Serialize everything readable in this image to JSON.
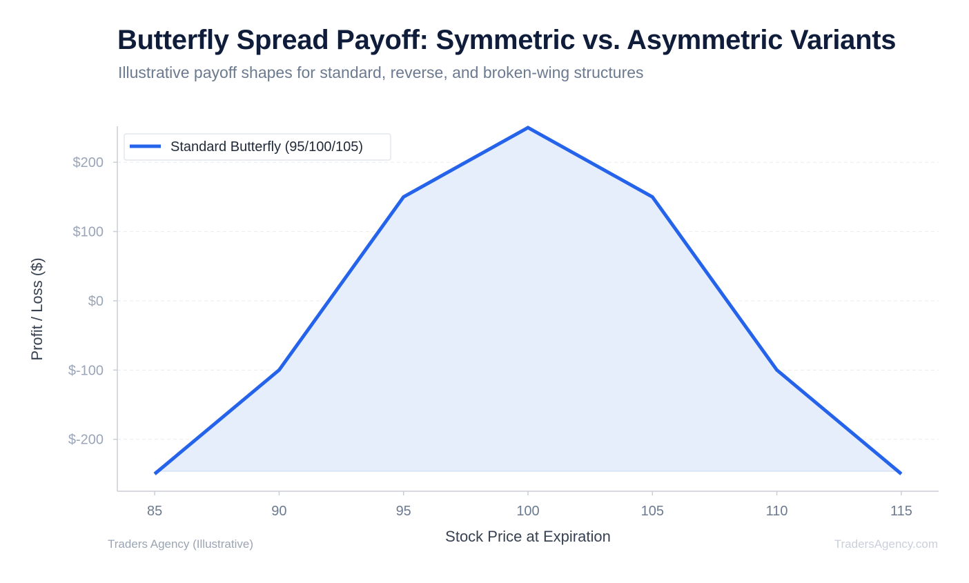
{
  "header": {
    "title": "Butterfly Spread Payoff: Symmetric vs. Asymmetric Variants",
    "subtitle": "Illustrative payoff shapes for standard, reverse, and broken-wing structures"
  },
  "footer": {
    "source": "Traders Agency (Illustrative)",
    "watermark": "TradersAgency.com"
  },
  "colors": {
    "line": "#2563eb",
    "fill": "#e6eefb",
    "grid": "#e8ebf0",
    "axis": "#c9ced6",
    "tick_text": "#9aa5b8",
    "axis_label": "#374151"
  },
  "chart_data": {
    "type": "line",
    "xlabel": "Stock Price at Expiration",
    "ylabel": "Profit / Loss ($)",
    "x": [
      85,
      90,
      95,
      100,
      105,
      110,
      115
    ],
    "xticks": [
      "85",
      "90",
      "95",
      "100",
      "105",
      "110",
      "115"
    ],
    "xlim": [
      83.5,
      116.5
    ],
    "ylim": [
      -275,
      252
    ],
    "yticks": [
      200,
      100,
      0,
      -100,
      -200
    ],
    "ytick_labels": [
      "$200",
      "$100",
      "$0",
      "$-100",
      "$-200"
    ],
    "grid": true,
    "legend": "top-left",
    "series": [
      {
        "name": "Standard Butterfly (95/100/105)",
        "values": [
          -250,
          -100,
          150,
          250,
          150,
          -100,
          -250
        ]
      }
    ]
  }
}
